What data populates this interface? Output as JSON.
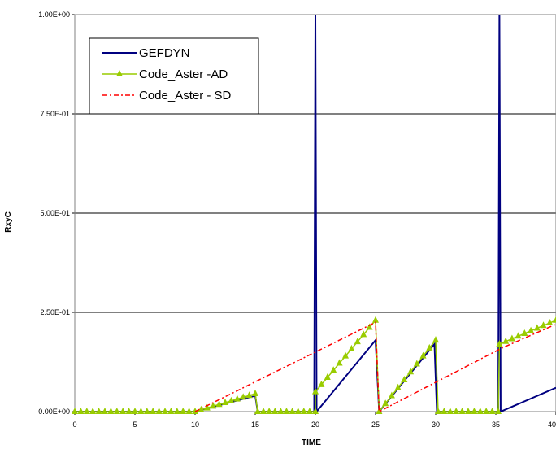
{
  "chart_data": {
    "type": "line",
    "title": "",
    "xlabel": "TIME",
    "ylabel": "RxyC",
    "xlim": [
      0,
      40
    ],
    "ylim": [
      0,
      1
    ],
    "x_ticks": [
      "0",
      "5",
      "10",
      "15",
      "20",
      "25",
      "30",
      "35",
      "40"
    ],
    "y_ticks": [
      "0.00E+00",
      "2.50E-01",
      "5.00E-01",
      "7.50E-01",
      "1.00E+00"
    ],
    "grid": "horizontal",
    "legend_position": "top-left",
    "series": [
      {
        "name": "GEFDYN",
        "color": "#000080",
        "style": "solid",
        "points": [
          [
            0,
            0
          ],
          [
            10,
            0
          ],
          [
            15,
            0.04
          ],
          [
            15.2,
            0
          ],
          [
            19.9,
            0
          ],
          [
            20,
            1.0
          ],
          [
            20.1,
            0.0
          ],
          [
            25,
            0.18
          ],
          [
            25.3,
            0
          ],
          [
            29.9,
            0.17
          ],
          [
            30.1,
            0
          ],
          [
            35.2,
            0
          ],
          [
            35.3,
            1.0
          ],
          [
            35.4,
            0.0
          ],
          [
            40,
            0.06
          ]
        ]
      },
      {
        "name": "Code_Aster -AD",
        "color": "#99CC00",
        "style": "solid-triangle-markers",
        "points": [
          [
            0,
            0
          ],
          [
            10,
            0
          ],
          [
            15,
            0.045
          ],
          [
            15.2,
            0
          ],
          [
            20,
            0
          ],
          [
            20,
            0.05
          ],
          [
            25,
            0.23
          ],
          [
            25.3,
            0
          ],
          [
            30,
            0.18
          ],
          [
            30.2,
            0
          ],
          [
            35.2,
            0
          ],
          [
            35.3,
            0.17
          ],
          [
            40,
            0.23
          ]
        ]
      },
      {
        "name": "Code_Aster - SD",
        "color": "#FF0000",
        "style": "dash-dot",
        "points": [
          [
            10,
            0
          ],
          [
            25,
            0.225
          ],
          [
            25.3,
            0.0
          ],
          [
            35.5,
            0.16
          ],
          [
            40,
            0.22
          ]
        ]
      }
    ]
  }
}
